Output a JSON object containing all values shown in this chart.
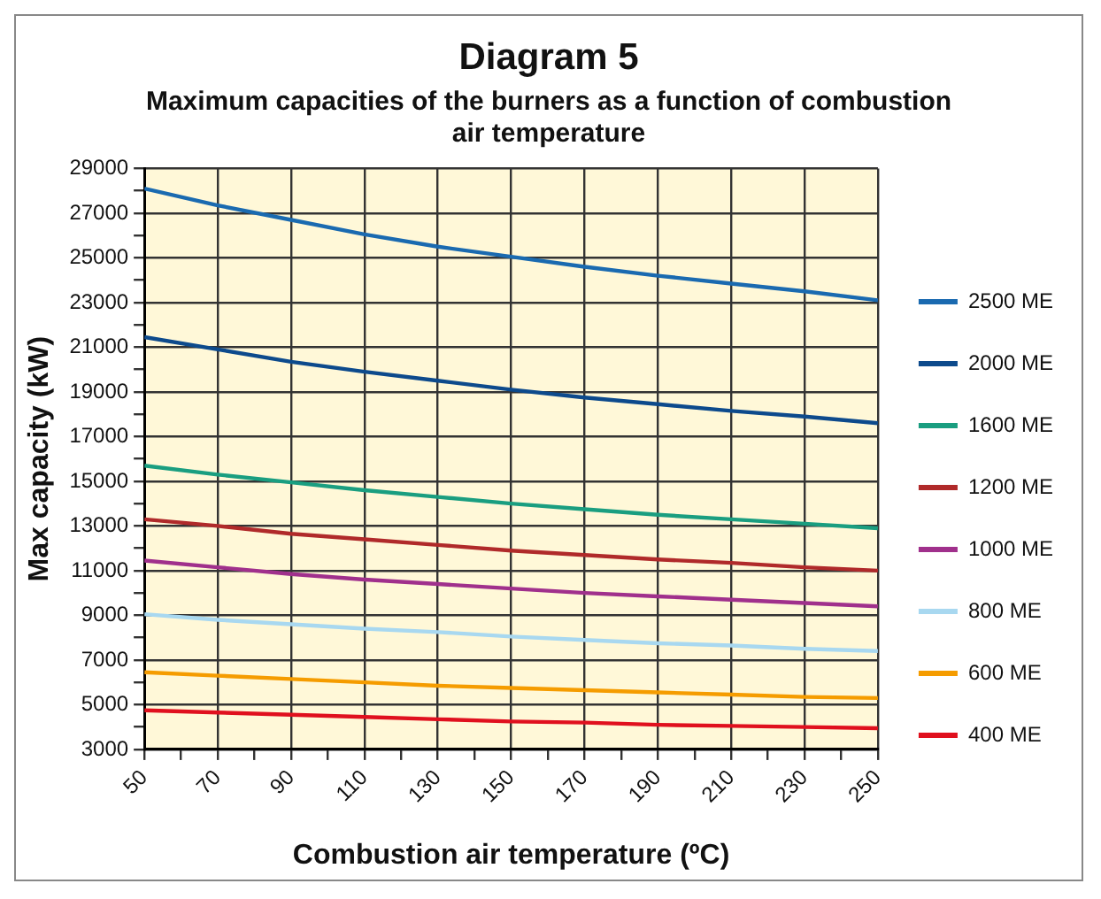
{
  "chart_data": {
    "type": "line",
    "title": "Diagram 5",
    "subtitle": "Maximum capacities of the burners as a function of combustion air temperature",
    "xlabel": "Combustion air temperature (ºC)",
    "ylabel": "Max capacity (kW)",
    "x": [
      50,
      70,
      90,
      110,
      130,
      150,
      170,
      190,
      210,
      230,
      250
    ],
    "xlim": [
      50,
      250
    ],
    "xticks": [
      50,
      {
        "value": 60,
        "label": null
      },
      70,
      {
        "value": 80,
        "label": null
      },
      90,
      {
        "value": 100,
        "label": null
      },
      110,
      {
        "value": 120,
        "label": null
      },
      130,
      {
        "value": 140,
        "label": null
      },
      150,
      {
        "value": 160,
        "label": null
      },
      170,
      {
        "value": 180,
        "label": null
      },
      190,
      {
        "value": 200,
        "label": null
      },
      210,
      {
        "value": 220,
        "label": null
      },
      230,
      {
        "value": 240,
        "label": null
      },
      250
    ],
    "ylim": [
      3000,
      29000
    ],
    "yticks": [
      3000,
      {
        "value": 4000,
        "label": null
      },
      5000,
      {
        "value": 6000,
        "label": null
      },
      7000,
      {
        "value": 8000,
        "label": null
      },
      9000,
      {
        "value": 10000,
        "label": null
      },
      11000,
      {
        "value": 12000,
        "label": null
      },
      13000,
      {
        "value": 14000,
        "label": null
      },
      15000,
      {
        "value": 16000,
        "label": null
      },
      17000,
      {
        "value": 18000,
        "label": null
      },
      19000,
      {
        "value": 20000,
        "label": null
      },
      21000,
      {
        "value": 22000,
        "label": null
      },
      23000,
      {
        "value": 24000,
        "label": null
      },
      25000,
      {
        "value": 26000,
        "label": null
      },
      27000,
      {
        "value": 28000,
        "label": null
      },
      29000
    ],
    "grid": true,
    "legend": "right",
    "marker": "none",
    "line_style": "solid",
    "series": [
      {
        "name": "2500 ME",
        "color": "#1a6ab0",
        "values": [
          28100,
          27350,
          26700,
          26050,
          25500,
          25050,
          24600,
          24200,
          23850,
          23500,
          23100
        ]
      },
      {
        "name": "2000 ME",
        "color": "#0d4a8c",
        "values": [
          21450,
          20900,
          20350,
          19900,
          19500,
          19100,
          18750,
          18450,
          18150,
          17900,
          17600
        ]
      },
      {
        "name": "1600 ME",
        "color": "#1a9e80",
        "values": [
          15700,
          15300,
          14950,
          14600,
          14300,
          14000,
          13750,
          13500,
          13300,
          13100,
          12900
        ]
      },
      {
        "name": "1200 ME",
        "color": "#b02a2a",
        "values": [
          13300,
          13000,
          12650,
          12400,
          12150,
          11900,
          11700,
          11500,
          11350,
          11150,
          11000
        ]
      },
      {
        "name": "1000 ME",
        "color": "#a0308c",
        "values": [
          11450,
          11150,
          10850,
          10600,
          10400,
          10200,
          10000,
          9850,
          9700,
          9550,
          9400
        ]
      },
      {
        "name": "800 ME",
        "color": "#a8d8f0",
        "values": [
          9050,
          8800,
          8600,
          8400,
          8250,
          8050,
          7900,
          7750,
          7650,
          7500,
          7400
        ]
      },
      {
        "name": "600 ME",
        "color": "#f59c00",
        "values": [
          6450,
          6300,
          6150,
          6000,
          5850,
          5750,
          5650,
          5550,
          5450,
          5350,
          5300
        ]
      },
      {
        "name": "400 ME",
        "color": "#e0101e",
        "values": [
          4750,
          4650,
          4550,
          4450,
          4350,
          4250,
          4200,
          4100,
          4050,
          4000,
          3950
        ]
      }
    ]
  }
}
